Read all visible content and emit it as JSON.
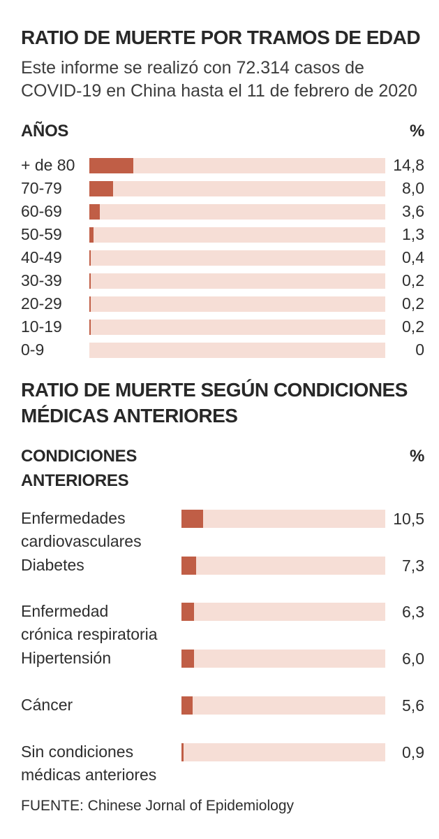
{
  "colors": {
    "bar_fill": "#c05e46",
    "bar_track": "#f6ded6",
    "title": "#282828",
    "text": "#3c3c3c"
  },
  "footer": {
    "source": "FUENTE: Chinese Jornal of Epidemiology"
  },
  "chart_data": [
    {
      "type": "bar",
      "orientation": "horizontal",
      "title": "RATIO DE MUERTE POR TRAMOS DE EDAD",
      "subtitle": "Este informe se realizó con 72.314 casos de COVID-19 en China hasta el 11 de febrero de 2020",
      "subtitle_lines": [
        "Este informe se realizó con 72.314 casos de",
        "COVID-19 en China hasta el 11 de febrero de 2020"
      ],
      "column_header_left": "AÑOS",
      "column_header_right": "%",
      "unit": "%",
      "xlim": [
        0,
        100
      ],
      "grid": false,
      "legend": "none",
      "categories": [
        "+ de 80",
        "70-79",
        "60-69",
        "50-59",
        "40-49",
        "30-39",
        "20-29",
        "10-19",
        "0-9"
      ],
      "values": [
        14.8,
        8.0,
        3.6,
        1.3,
        0.4,
        0.2,
        0.2,
        0.2,
        0
      ],
      "rows": [
        {
          "label": "+ de 80",
          "value": 14.8,
          "display": "14,8"
        },
        {
          "label": "70-79",
          "value": 8.0,
          "display": "8,0"
        },
        {
          "label": "60-69",
          "value": 3.6,
          "display": "3,6"
        },
        {
          "label": "50-59",
          "value": 1.3,
          "display": "1,3"
        },
        {
          "label": "40-49",
          "value": 0.4,
          "display": "0,4"
        },
        {
          "label": "30-39",
          "value": 0.2,
          "display": "0,2"
        },
        {
          "label": "20-29",
          "value": 0.2,
          "display": "0,2"
        },
        {
          "label": "10-19",
          "value": 0.2,
          "display": "0,2"
        },
        {
          "label": "0-9",
          "value": 0,
          "display": "0"
        }
      ]
    },
    {
      "type": "bar",
      "orientation": "horizontal",
      "title": "RATIO DE MUERTE SEGÚN CONDICIONES MÉDICAS ANTERIORES",
      "title_lines": [
        "RATIO DE MUERTE SEGÚN CONDICIONES",
        "MÉDICAS ANTERIORES"
      ],
      "column_header_left_lines": [
        "CONDICIONES",
        "ANTERIORES"
      ],
      "column_header_right": "%",
      "unit": "%",
      "xlim": [
        0,
        100
      ],
      "grid": false,
      "legend": "none",
      "categories": [
        "Enfermedades cardiovasculares",
        "Diabetes",
        "Enfermedad crónica respiratoria",
        "Hipertensión",
        "Cáncer",
        "Sin condiciones médicas anteriores"
      ],
      "values": [
        10.5,
        7.3,
        6.3,
        6.0,
        5.6,
        0.9
      ],
      "rows": [
        {
          "lines": [
            "Enfermedades",
            "cardiovasculares"
          ],
          "value": 10.5,
          "display": "10,5"
        },
        {
          "lines": [
            "Diabetes"
          ],
          "value": 7.3,
          "display": "7,3"
        },
        {
          "lines": [
            "Enfermedad",
            "crónica respiratoria"
          ],
          "value": 6.3,
          "display": "6,3"
        },
        {
          "lines": [
            "Hipertensión"
          ],
          "value": 6.0,
          "display": "6,0"
        },
        {
          "lines": [
            "Cáncer"
          ],
          "value": 5.6,
          "display": "5,6"
        },
        {
          "lines": [
            "Sin condiciones",
            "médicas anteriores"
          ],
          "value": 0.9,
          "display": "0,9"
        }
      ]
    }
  ]
}
